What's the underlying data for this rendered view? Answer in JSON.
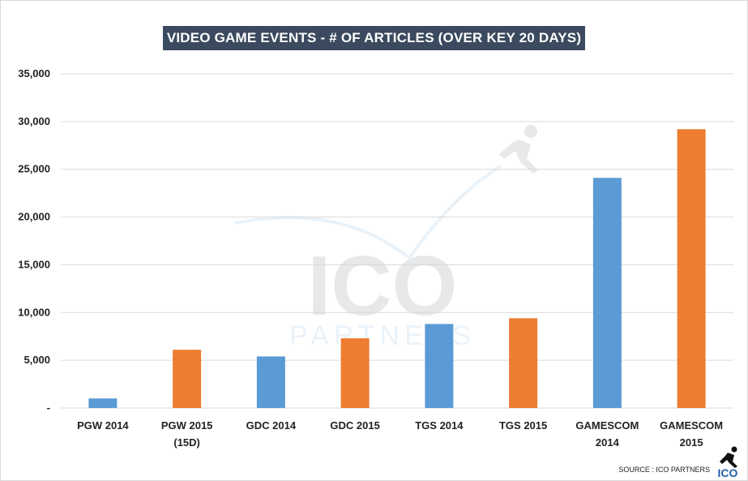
{
  "chart_data": {
    "type": "bar",
    "title": "VIDEO GAME EVENTS - # OF ARTICLES (OVER KEY 20 DAYS)",
    "categories": [
      [
        "PGW 2014"
      ],
      [
        "PGW 2015",
        "(15D)"
      ],
      [
        "GDC 2014"
      ],
      [
        "GDC 2015"
      ],
      [
        "TGS 2014"
      ],
      [
        "TGS 2015"
      ],
      [
        "GAMESCOM",
        "2014"
      ],
      [
        "GAMESCOM",
        "2015"
      ]
    ],
    "values": [
      1000,
      6100,
      5400,
      7300,
      8800,
      9400,
      24100,
      29200
    ],
    "bar_colors": [
      "#5b9bd5",
      "#ed7d31",
      "#5b9bd5",
      "#ed7d31",
      "#5b9bd5",
      "#ed7d31",
      "#5b9bd5",
      "#ed7d31"
    ],
    "ylim": [
      0,
      35000
    ],
    "yticks": [
      0,
      5000,
      10000,
      15000,
      20000,
      25000,
      30000,
      35000
    ],
    "ytick_labels": [
      "-",
      "5,000",
      "10,000",
      "15,000",
      "20,000",
      "25,000",
      "30,000",
      "35,000"
    ],
    "grid": true,
    "xlabel": "",
    "ylabel": ""
  },
  "watermark": {
    "logo_text": "ICO",
    "sub_text": "PARTNERS"
  },
  "source": "SOURCE : ICO PARTNERS",
  "corner_logo": "ICO",
  "colors": {
    "title_bg": "#3b4a5e",
    "blue": "#5b9bd5",
    "orange": "#ed7d31",
    "grid": "#d9d9d9"
  }
}
